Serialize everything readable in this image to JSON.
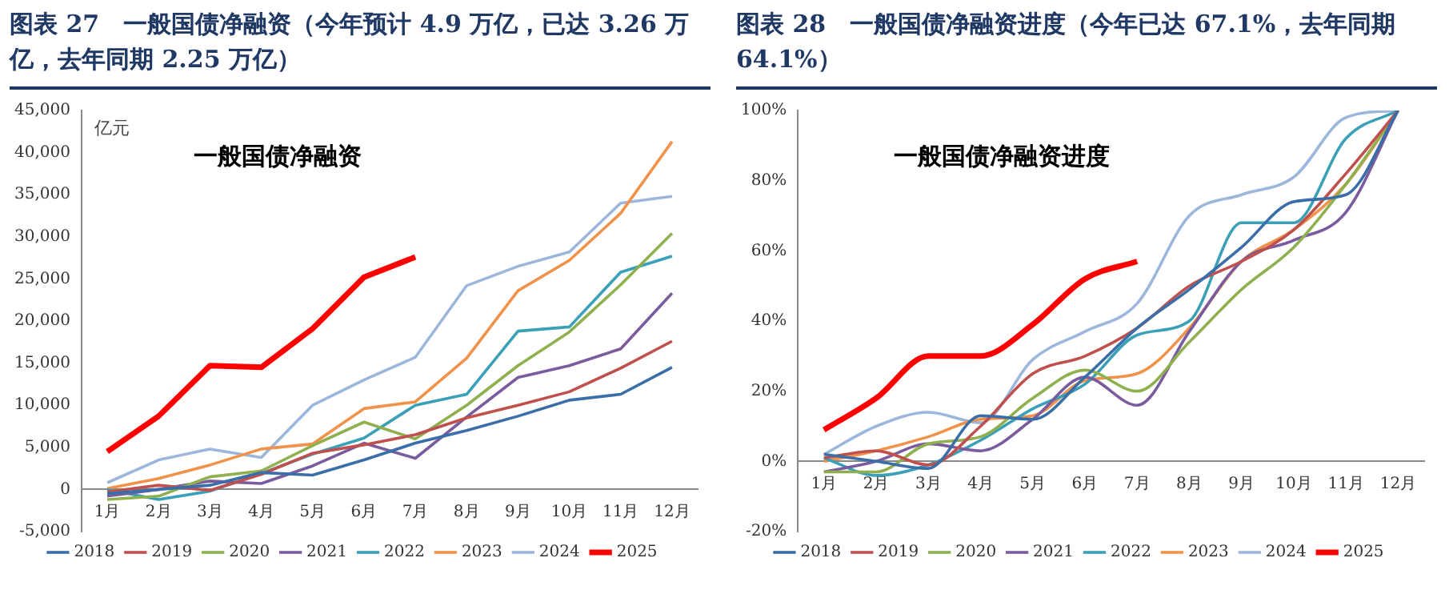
{
  "chart_data": [
    {
      "type": "line",
      "title": "图表 27　一般国债净融资（今年预计 4.9 万亿，已达 3.26 万亿，去年同期 2.25 万亿）",
      "ylabel": "亿元",
      "annotations": [
        "一般国债净融资"
      ],
      "categories": [
        "1月",
        "2月",
        "3月",
        "4月",
        "5月",
        "6月",
        "7月",
        "8月",
        "9月",
        "10月",
        "11月",
        "12月"
      ],
      "ylim": [
        -5000,
        45000
      ],
      "yticks": [
        {
          "value": -5000,
          "label": "-5,000"
        },
        {
          "value": 0,
          "label": "0"
        },
        {
          "value": 5000,
          "label": "5,000"
        },
        {
          "value": 10000,
          "label": "10,000"
        },
        {
          "value": 15000,
          "label": "15,000"
        },
        {
          "value": 20000,
          "label": "20,000"
        },
        {
          "value": 25000,
          "label": "25,000"
        },
        {
          "value": 30000,
          "label": "30,000"
        },
        {
          "value": 35000,
          "label": "35,000"
        },
        {
          "value": 40000,
          "label": "40,000"
        },
        {
          "value": 45000,
          "label": "45,000"
        }
      ],
      "grid": false,
      "legend": "bottom",
      "marker": "none",
      "series": [
        {
          "name": "2018",
          "color": "#3a6ea8",
          "values": [
            -500,
            0,
            500,
            2000,
            1700,
            3500,
            5500,
            7000,
            8700,
            10600,
            11300,
            14500
          ]
        },
        {
          "name": "2019",
          "color": "#c0504d",
          "values": [
            -300,
            500,
            -100,
            1800,
            4300,
            5300,
            6500,
            8500,
            10000,
            11600,
            14400,
            17600
          ]
        },
        {
          "name": "2020",
          "color": "#8fb04f",
          "values": [
            -1200,
            -800,
            1500,
            2200,
            5200,
            8000,
            6000,
            10000,
            14700,
            18700,
            24300,
            30400
          ]
        },
        {
          "name": "2021",
          "color": "#7a5c9e",
          "values": [
            -800,
            0,
            1000,
            700,
            2800,
            5500,
            3700,
            8600,
            13300,
            14700,
            16700,
            23300
          ]
        },
        {
          "name": "2022",
          "color": "#3aa0b8",
          "values": [
            0,
            -1200,
            -200,
            1900,
            4200,
            6100,
            10000,
            11300,
            18800,
            19300,
            25800,
            27700
          ]
        },
        {
          "name": "2023",
          "color": "#f0924a",
          "values": [
            100,
            1300,
            2900,
            4800,
            5400,
            9600,
            10400,
            15600,
            23600,
            27200,
            32800,
            41300
          ]
        },
        {
          "name": "2024",
          "color": "#9db6dc",
          "values": [
            800,
            3500,
            4800,
            3800,
            10000,
            13000,
            15700,
            24200,
            26500,
            28200,
            34000,
            34800
          ]
        },
        {
          "name": "2025",
          "color": "#ff0000",
          "values": [
            4500,
            8700,
            14700,
            14500,
            19100,
            25200,
            27600,
            null,
            null,
            null,
            null,
            null
          ]
        }
      ]
    },
    {
      "type": "line",
      "title": "图表 28　一般国债净融资进度（今年已达 67.1%，去年同期 64.1%）",
      "annotations": [
        "一般国债净融资进度"
      ],
      "categories": [
        "1月",
        "2月",
        "3月",
        "4月",
        "5月",
        "6月",
        "7月",
        "8月",
        "9月",
        "10月",
        "11月",
        "12月"
      ],
      "ylim": [
        -20,
        100
      ],
      "yticks": [
        {
          "value": -20,
          "label": "-20%"
        },
        {
          "value": 0,
          "label": "0%"
        },
        {
          "value": 20,
          "label": "20%"
        },
        {
          "value": 40,
          "label": "40%"
        },
        {
          "value": 60,
          "label": "60%"
        },
        {
          "value": 80,
          "label": "80%"
        },
        {
          "value": 100,
          "label": "100%"
        }
      ],
      "grid": false,
      "legend": "bottom",
      "marker": "none",
      "series": [
        {
          "name": "2018",
          "color": "#3a6ea8",
          "values": [
            2,
            0,
            -2,
            13,
            12,
            24,
            38,
            49,
            61,
            74,
            76,
            100
          ]
        },
        {
          "name": "2019",
          "color": "#c0504d",
          "values": [
            1,
            3,
            -1,
            10,
            25,
            30,
            38,
            50,
            57,
            66,
            82,
            100
          ]
        },
        {
          "name": "2020",
          "color": "#8fb04f",
          "values": [
            -3,
            -3,
            5,
            7,
            18,
            26,
            20,
            34,
            49,
            61,
            79,
            100
          ]
        },
        {
          "name": "2021",
          "color": "#7a5c9e",
          "values": [
            -3,
            0,
            5,
            3,
            12,
            24,
            16,
            37,
            57,
            63,
            71,
            100
          ]
        },
        {
          "name": "2022",
          "color": "#3aa0b8",
          "values": [
            1,
            -4,
            -1,
            6,
            15,
            22,
            36,
            40,
            68,
            68,
            92,
            100
          ]
        },
        {
          "name": "2023",
          "color": "#f0924a",
          "values": [
            0,
            3,
            7,
            12,
            13,
            23,
            25,
            38,
            57,
            66,
            79,
            100
          ]
        },
        {
          "name": "2024",
          "color": "#9db6dc",
          "values": [
            2,
            10,
            14,
            11,
            29,
            37,
            45,
            70,
            76,
            81,
            98,
            100
          ]
        },
        {
          "name": "2025",
          "color": "#ff0000",
          "values": [
            9,
            18,
            30,
            30,
            39,
            52,
            57,
            null,
            null,
            null,
            null,
            null
          ]
        }
      ]
    }
  ]
}
